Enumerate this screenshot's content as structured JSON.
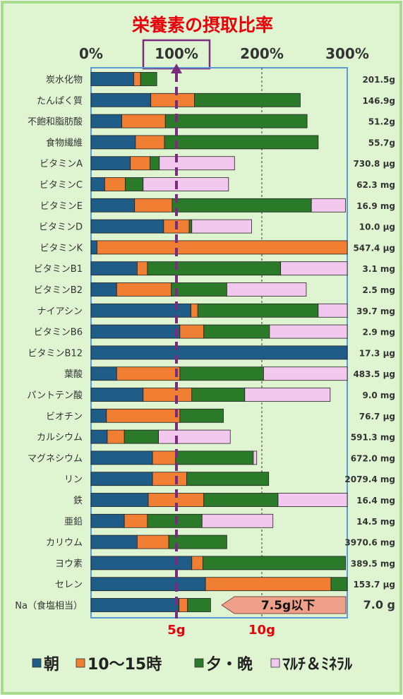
{
  "colors": {
    "background": "#dff5d2",
    "frame": "#a6dc8c",
    "plot_border": "#5b9bd5",
    "title": "#e8000b",
    "reference_line": "#7b2b7e",
    "annotation_fill": "#eea08a",
    "text": "#1a1a1a"
  },
  "chart_data": {
    "type": "bar",
    "stacked": true,
    "orientation": "horizontal",
    "title": "栄養素の摂取比率",
    "xlim": [
      0,
      300
    ],
    "x_ticks": [
      {
        "value": 0,
        "label": "0%"
      },
      {
        "value": 100,
        "label": "100%"
      },
      {
        "value": 200,
        "label": "200%"
      },
      {
        "value": 300,
        "label": "300%"
      }
    ],
    "grid_lines": [
      200
    ],
    "reference_line": 100,
    "legend_position": "bottom",
    "categories": [
      "炭水化物",
      "たんぱく質",
      "不飽和脂肪酸",
      "食物繊維",
      "ビタミンA",
      "ビタミンC",
      "ビタミンE",
      "ビタミンD",
      "ビタミンK",
      "ビタミンB1",
      "ビタミンB2",
      "ナイアシン",
      "ビタミンB6",
      "ビタミンB12",
      "葉酸",
      "パントテン酸",
      "ビオチン",
      "カルシウム",
      "マグネシウム",
      "リン",
      "鉄",
      "亜鉛",
      "カリウム",
      "ヨウ素",
      "セレン",
      "Na（食塩相当）"
    ],
    "amounts": [
      "201.5g",
      "146.9g",
      "51.2g",
      "55.7g",
      "730.8 μg",
      "62.3 mg",
      "16.9 mg",
      "10.0 μg",
      "547.4 μg",
      "3.1 mg",
      "2.5 mg",
      "39.7 mg",
      "2.9 mg",
      "17.3 μg",
      "483.5 μg",
      "9.0 mg",
      "76.7 μg",
      "591.3 mg",
      "672.0 mg",
      "2079.4 mg",
      "16.4 mg",
      "14.5 mg",
      "3970.6 mg",
      "389.5 mg",
      "153.7 μg",
      "7.0 g"
    ],
    "series": [
      {
        "name": "朝",
        "color": "#1f5c87",
        "values": [
          50,
          70,
          36,
          52,
          46,
          16,
          51,
          85,
          7,
          54,
          30,
          117,
          104,
          300,
          30,
          61,
          18,
          19,
          72,
          72,
          67,
          39,
          54,
          118,
          134,
          103
        ]
      },
      {
        "name": "10～15時",
        "color": "#f07e33",
        "values": [
          8,
          51,
          51,
          34,
          23,
          24,
          44,
          30,
          293,
          12,
          64,
          8,
          28,
          0,
          74,
          57,
          86,
          20,
          27,
          40,
          65,
          27,
          37,
          13,
          147,
          10
        ]
      },
      {
        "name": "夕・晩",
        "color": "#2a7a2a",
        "values": [
          19,
          124,
          166,
          180,
          11,
          21,
          163,
          3,
          0,
          156,
          65,
          141,
          77,
          0,
          98,
          62,
          51,
          40,
          91,
          96,
          87,
          64,
          68,
          167,
          19,
          27
        ]
      },
      {
        "name": "マルチ＆ミネラル",
        "color": "#f2c8ee",
        "values": [
          0,
          0,
          0,
          0,
          88,
          100,
          40,
          70,
          0,
          78,
          93,
          36,
          91,
          0,
          100,
          100,
          0,
          84,
          4,
          0,
          82,
          83,
          0,
          0,
          0,
          0
        ]
      }
    ],
    "legend": [
      {
        "label": "朝",
        "color": "#1f5c87"
      },
      {
        "label": "10～15時",
        "color": "#f07e33"
      },
      {
        "label": "夕・晩",
        "color": "#2a7a2a"
      },
      {
        "label": "ﾏﾙﾁ＆ﾐﾈﾗﾙ",
        "color": "#f2c8ee"
      }
    ],
    "bottom_labels": [
      {
        "value": 100,
        "label": "5g"
      },
      {
        "value": 200,
        "label": "10g"
      }
    ],
    "annotation": {
      "label": "7.5g以下",
      "from": 153,
      "to": 300
    }
  }
}
